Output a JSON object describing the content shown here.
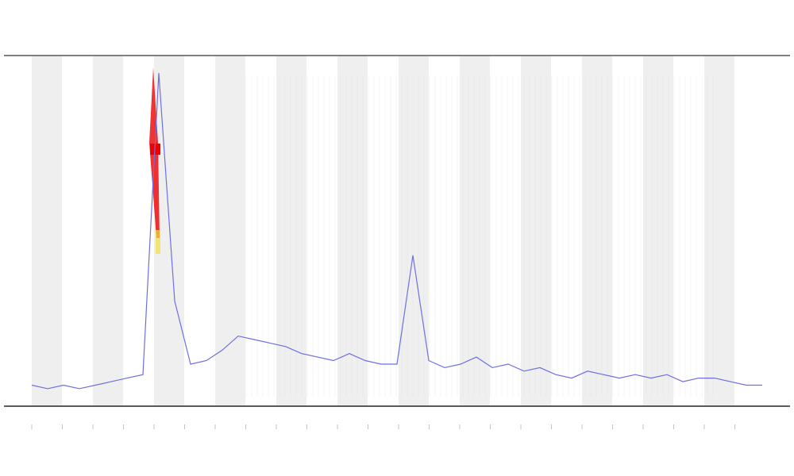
{
  "chart_data": {
    "type": "line",
    "series": [
      {
        "color": "#6f6fe0",
        "values": [
          6,
          5,
          6,
          5,
          6,
          7,
          8,
          9,
          95,
          30,
          12,
          13,
          16,
          20,
          19,
          18,
          17,
          15,
          14,
          13,
          15,
          13,
          12,
          12,
          43,
          13,
          11,
          12,
          14,
          11,
          12,
          10,
          11,
          9,
          8,
          10,
          9,
          8,
          9,
          8,
          9,
          7,
          8,
          8,
          7,
          6,
          6
        ]
      }
    ],
    "ylim": [
      0,
      100
    ]
  }
}
